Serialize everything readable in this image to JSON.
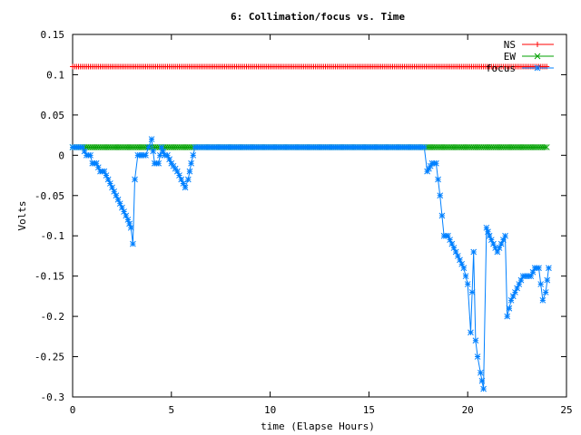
{
  "chart_data": {
    "type": "line",
    "title": "6: Collimation/focus vs. Time",
    "xlabel": "time (Elapse Hours)",
    "ylabel": "Volts",
    "xlim": [
      0,
      25
    ],
    "ylim": [
      -0.3,
      0.15
    ],
    "xticks": [
      0,
      5,
      10,
      15,
      20,
      25
    ],
    "yticks": [
      -0.3,
      -0.25,
      -0.2,
      -0.15,
      -0.1,
      -0.05,
      0,
      0.05,
      0.1,
      0.15
    ],
    "xtick_labels": [
      "0",
      "5",
      "10",
      "15",
      "20",
      "25"
    ],
    "ytick_labels": [
      "-0.3",
      "-0.25",
      "-0.2",
      "-0.15",
      "-0.1",
      "-0.05",
      "0",
      "0.05",
      "0.1",
      "0.15"
    ],
    "grid": false,
    "legend_position": "top-right",
    "series": [
      {
        "name": "NS",
        "color": "#ff0000",
        "marker": "plus",
        "points": [
          [
            0,
            0.11
          ],
          [
            24,
            0.11
          ]
        ]
      },
      {
        "name": "EW",
        "color": "#00a000",
        "marker": "cross",
        "points": [
          [
            0,
            0.01
          ],
          [
            24,
            0.01
          ]
        ]
      },
      {
        "name": "focus",
        "color": "#0080ff",
        "marker": "star",
        "points": [
          [
            0,
            0.01
          ],
          [
            0.5,
            0.01
          ],
          [
            0.7,
            0.0
          ],
          [
            0.9,
            0.0
          ],
          [
            1.0,
            -0.01
          ],
          [
            1.2,
            -0.01
          ],
          [
            1.4,
            -0.02
          ],
          [
            1.6,
            -0.02
          ],
          [
            1.8,
            -0.03
          ],
          [
            2.0,
            -0.04
          ],
          [
            2.2,
            -0.05
          ],
          [
            2.4,
            -0.06
          ],
          [
            2.6,
            -0.07
          ],
          [
            2.8,
            -0.08
          ],
          [
            2.95,
            -0.09
          ],
          [
            3.05,
            -0.11
          ],
          [
            3.15,
            -0.03
          ],
          [
            3.3,
            0.0
          ],
          [
            3.5,
            0.0
          ],
          [
            3.7,
            0.0
          ],
          [
            3.85,
            0.01
          ],
          [
            4.0,
            0.02
          ],
          [
            4.15,
            -0.01
          ],
          [
            4.35,
            -0.01
          ],
          [
            4.5,
            0.01
          ],
          [
            4.65,
            0.0
          ],
          [
            4.8,
            0.0
          ],
          [
            5.0,
            -0.01
          ],
          [
            5.3,
            -0.02
          ],
          [
            5.5,
            -0.03
          ],
          [
            5.7,
            -0.04
          ],
          [
            5.85,
            -0.03
          ],
          [
            6.0,
            -0.01
          ],
          [
            6.2,
            0.01
          ],
          [
            10,
            0.01
          ],
          [
            15,
            0.01
          ],
          [
            17.8,
            0.01
          ],
          [
            17.95,
            -0.02
          ],
          [
            18.2,
            -0.01
          ],
          [
            18.4,
            -0.01
          ],
          [
            18.6,
            -0.05
          ],
          [
            18.8,
            -0.1
          ],
          [
            19.0,
            -0.1
          ],
          [
            19.2,
            -0.11
          ],
          [
            19.4,
            -0.12
          ],
          [
            19.6,
            -0.13
          ],
          [
            19.8,
            -0.14
          ],
          [
            20.0,
            -0.16
          ],
          [
            20.15,
            -0.22
          ],
          [
            20.3,
            -0.12
          ],
          [
            20.4,
            -0.23
          ],
          [
            20.5,
            -0.25
          ],
          [
            20.65,
            -0.27
          ],
          [
            20.8,
            -0.29
          ],
          [
            20.95,
            -0.09
          ],
          [
            21.1,
            -0.1
          ],
          [
            21.3,
            -0.11
          ],
          [
            21.5,
            -0.12
          ],
          [
            21.7,
            -0.11
          ],
          [
            21.9,
            -0.1
          ],
          [
            22.0,
            -0.2
          ],
          [
            22.2,
            -0.18
          ],
          [
            22.4,
            -0.17
          ],
          [
            22.6,
            -0.16
          ],
          [
            22.8,
            -0.15
          ],
          [
            23.0,
            -0.15
          ],
          [
            23.2,
            -0.15
          ],
          [
            23.4,
            -0.14
          ],
          [
            23.6,
            -0.14
          ],
          [
            23.8,
            -0.18
          ],
          [
            23.95,
            -0.17
          ],
          [
            24.1,
            -0.14
          ]
        ]
      }
    ]
  }
}
